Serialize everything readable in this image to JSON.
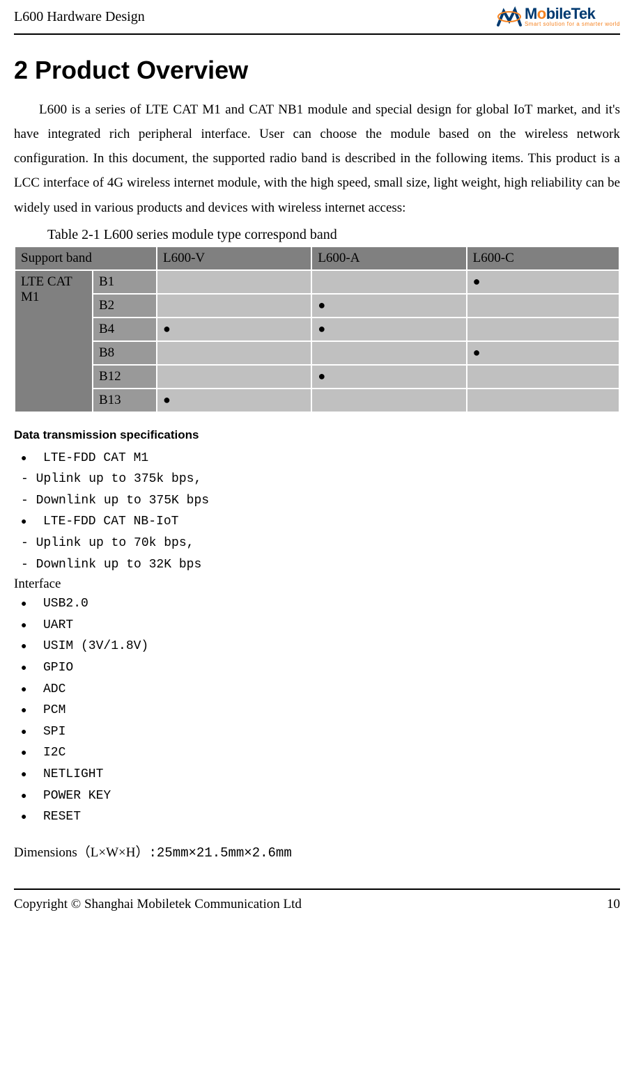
{
  "header": {
    "doc_title": "L600 Hardware Design",
    "logo": {
      "main_prefix": "M",
      "main_mid": "o",
      "main_rest": "bileTek",
      "tagline": "Smart solution for a smarter world"
    }
  },
  "section": {
    "title": "2 Product Overview",
    "body": "L600 is a series of LTE CAT M1 and CAT NB1 module and special design for global IoT market, and it's have integrated rich peripheral interface. User can choose the module based on the wireless network configuration. In this document, the supported radio band is described in the following items. This product is a LCC interface of 4G wireless internet module, with the high speed, small size, light weight, high reliability can be widely used in various products and devices with wireless internet access:"
  },
  "table": {
    "caption": "Table 2-1    L600 series module type correspond band",
    "header_row": [
      "Support band",
      "L600-V",
      "L600-A",
      "L600-C"
    ],
    "category": "LTE CAT M1",
    "rows": [
      {
        "band": "B1",
        "v": "",
        "a": "",
        "c": "●"
      },
      {
        "band": "B2",
        "v": "",
        "a": "●",
        "c": ""
      },
      {
        "band": "B4",
        "v": "●",
        "a": "●",
        "c": ""
      },
      {
        "band": "B8",
        "v": "",
        "a": "",
        "c": "●"
      },
      {
        "band": "B12",
        "v": "",
        "a": "●",
        "c": ""
      },
      {
        "band": "B13",
        "v": "●",
        "a": "",
        "c": ""
      }
    ]
  },
  "data_spec": {
    "heading": "Data transmission specifications",
    "items": [
      {
        "type": "bullet",
        "text": "LTE-FDD CAT M1"
      },
      {
        "type": "dash",
        "text": "- Uplink up to 375k bps,"
      },
      {
        "type": "dash",
        "text": "- Downlink up to 375K bps"
      },
      {
        "type": "bullet",
        "text": "LTE-FDD CAT NB-IoT"
      },
      {
        "type": "dash",
        "text": "- Uplink up to 70k bps,"
      },
      {
        "type": "dash",
        "text": "- Downlink up to 32K bps"
      }
    ]
  },
  "interface": {
    "heading": "Interface",
    "items": [
      "USB2.0",
      "UART",
      "USIM (3V/1.8V)",
      "GPIO",
      "ADC",
      "PCM",
      "SPI",
      "I2C",
      "NETLIGHT",
      "POWER KEY",
      "RESET"
    ]
  },
  "dimensions": {
    "label": "Dimensions（L×W×H）",
    "value": ":25mm×21.5mm×2.6mm"
  },
  "footer": {
    "copyright": "Copyright © Shanghai Mobiletek Communication Ltd",
    "page": "10"
  },
  "colors": {
    "header_bg": "#808080",
    "band_label_bg": "#999999",
    "value_bg": "#c0c0c0",
    "logo_blue": "#003a70",
    "logo_orange": "#f58220"
  }
}
